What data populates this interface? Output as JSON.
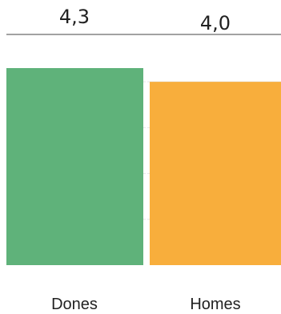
{
  "chart_data": {
    "type": "bar",
    "categories": [
      "Dones",
      "Homes"
    ],
    "values": [
      4.3,
      4.0
    ],
    "value_labels": [
      "4,3",
      "4,0"
    ],
    "ylim": [
      0,
      4.3
    ],
    "grid": true,
    "legend": "none",
    "colors": [
      "#5fb27a",
      "#f8ae3c"
    ]
  }
}
